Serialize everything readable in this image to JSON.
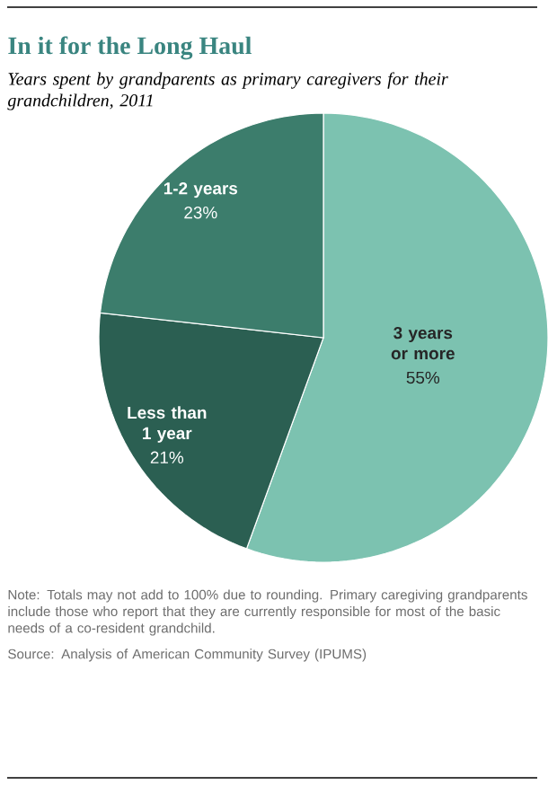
{
  "chart_data": {
    "type": "pie",
    "title": "In it for the Long Haul",
    "subtitle": "Years spent by grandparents as primary caregivers for their grandchildren, 2011",
    "categories": [
      "3 years or more",
      "Less than 1 year",
      "1-2 years"
    ],
    "values": [
      55,
      21,
      23
    ],
    "colors": [
      "#7cc2b0",
      "#2b5f52",
      "#3c7d6c"
    ],
    "value_labels": [
      "55%",
      "21%",
      "23%"
    ],
    "annotations": [
      "Note: Totals may not add to 100% due to rounding. Primary caregiving grandparents include those who report that they are currently responsible for most of the basic needs of a co-resident grandchild.",
      "Source: Analysis of American Community Survey (IPUMS)"
    ]
  }
}
